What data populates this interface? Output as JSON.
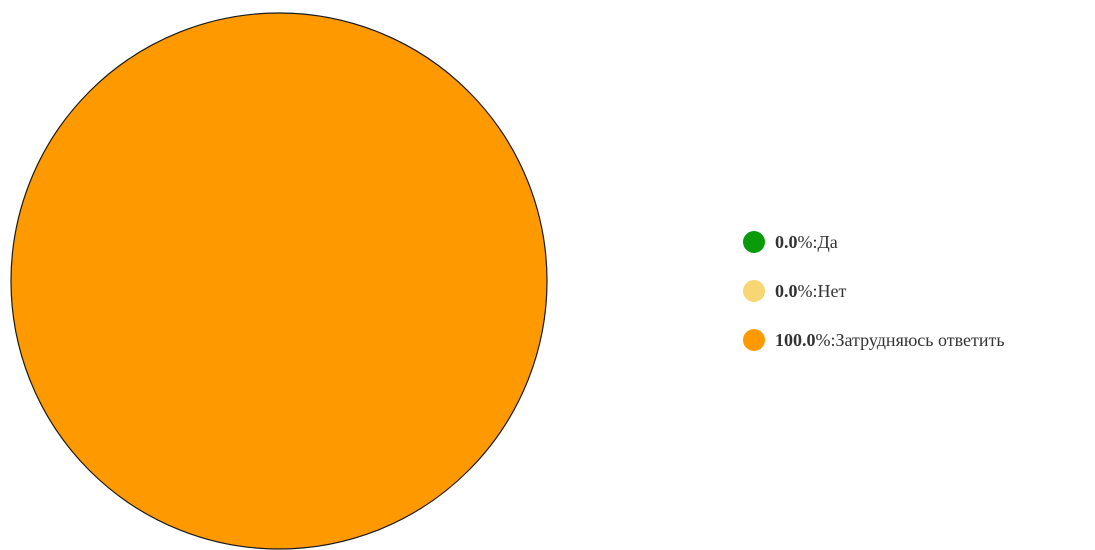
{
  "chart_data": {
    "type": "pie",
    "categories": [
      "Да",
      "Нет",
      "Затрудняюсь ответить"
    ],
    "values": [
      0.0,
      0.0,
      100.0
    ],
    "value_labels": [
      "0.0",
      "0.0",
      "100.0"
    ],
    "unit": "%",
    "separator": ": ",
    "colors": [
      "#0a9a0a",
      "#f7d774",
      "#ff9900"
    ],
    "legend_position": "right",
    "title": ""
  }
}
